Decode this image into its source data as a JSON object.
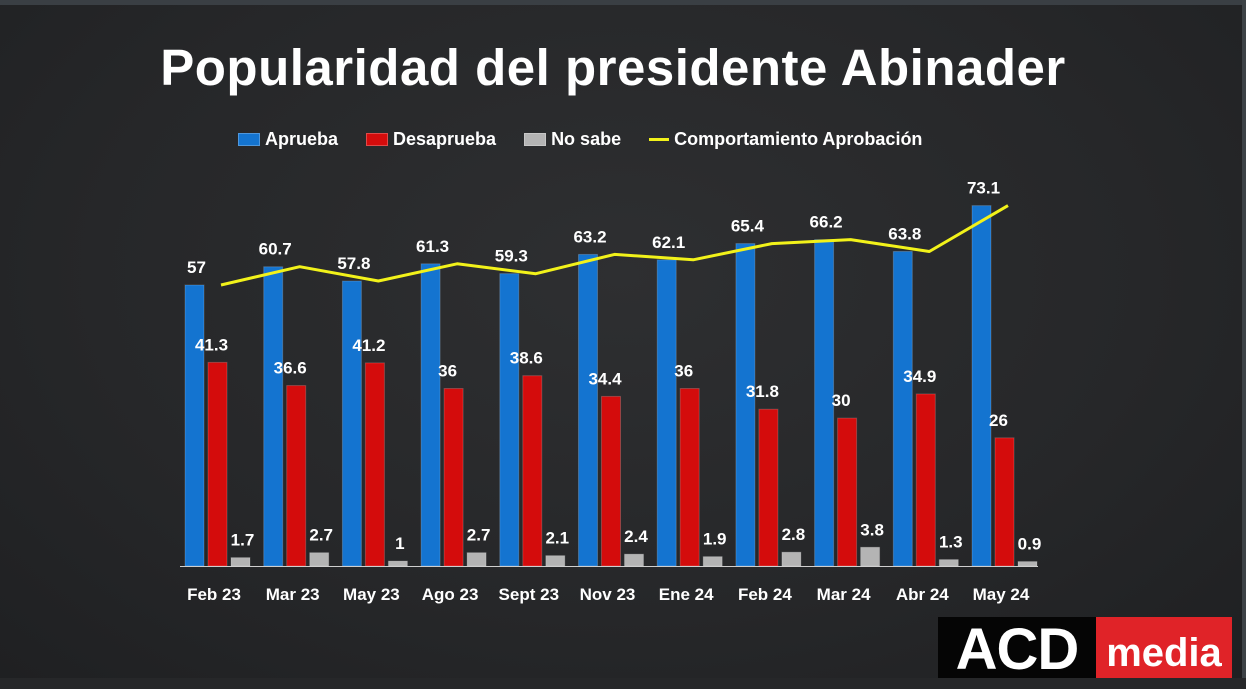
{
  "chart_data": {
    "type": "bar",
    "title": "Popularidad del presidente Abinader",
    "xlabel": "",
    "ylabel": "",
    "ylim": [
      0,
      80
    ],
    "grid": false,
    "legend_placement": "top-center",
    "categories": [
      "Feb 23",
      "Mar 23",
      "May 23",
      "Ago 23",
      "Sept 23",
      "Nov 23",
      "Ene 24",
      "Feb 24",
      "Mar 24",
      "Abr 24",
      "May 24"
    ],
    "series": [
      {
        "name": "Aprueba",
        "kind": "bar",
        "color": "#1474d0",
        "values": [
          57,
          60.7,
          57.8,
          61.3,
          59.3,
          63.2,
          62.1,
          65.4,
          66.2,
          63.8,
          73.1
        ]
      },
      {
        "name": "Desaprueba",
        "kind": "bar",
        "color": "#d40c0c",
        "values": [
          41.3,
          36.6,
          41.2,
          36,
          38.6,
          34.4,
          36,
          31.8,
          30,
          34.9,
          26
        ]
      },
      {
        "name": "No sabe",
        "kind": "bar",
        "color": "#b4b4b4",
        "values": [
          1.7,
          2.7,
          1,
          2.7,
          2.1,
          2.4,
          1.9,
          2.8,
          3.8,
          1.3,
          0.9
        ]
      },
      {
        "name": "Comportamiento Aprobación",
        "kind": "line",
        "color": "#f2f21a",
        "values": [
          57,
          60.7,
          57.8,
          61.3,
          59.3,
          63.2,
          62.1,
          65.4,
          66.2,
          63.8,
          73.1
        ]
      }
    ],
    "data_labels": {
      "Aprueba": [
        "57",
        "60.7",
        "57.8",
        "61.3",
        "59.3",
        "63.2",
        "62.1",
        "65.4",
        "66.2",
        "63.8",
        "73.1"
      ],
      "Desaprueba": [
        "41.3",
        "36.6",
        "41.2",
        "36",
        "38.6",
        "34.4",
        "36",
        "31.8",
        "30",
        "34.9",
        "26"
      ],
      "No sabe": [
        "1.7",
        "2.7",
        "1",
        "2.7",
        "2.1",
        "2.4",
        "1.9",
        "2.8",
        "3.8",
        "1.3",
        "0.9"
      ]
    }
  },
  "logo": {
    "part1": "ACD",
    "part2": "media"
  }
}
